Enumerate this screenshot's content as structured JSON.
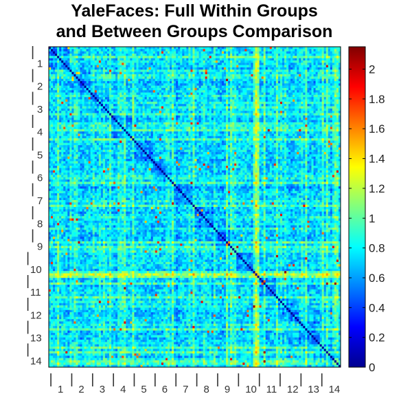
{
  "chart_data": {
    "type": "heatmap",
    "title_lines": [
      "YaleFaces: Full Within Groups",
      "and Between Groups Comparison"
    ],
    "group_labels": [
      "1",
      "2",
      "3",
      "4",
      "5",
      "6",
      "7",
      "8",
      "9",
      "10",
      "11",
      "12",
      "13",
      "14"
    ],
    "colorbar": {
      "colormap": "jet",
      "min": 0,
      "max": 2.15,
      "ticks": [
        0,
        0.2,
        0.4,
        0.6,
        0.8,
        1,
        1.2,
        1.4,
        1.6,
        1.8,
        2
      ]
    },
    "tick_mark_glyph": "|"
  }
}
